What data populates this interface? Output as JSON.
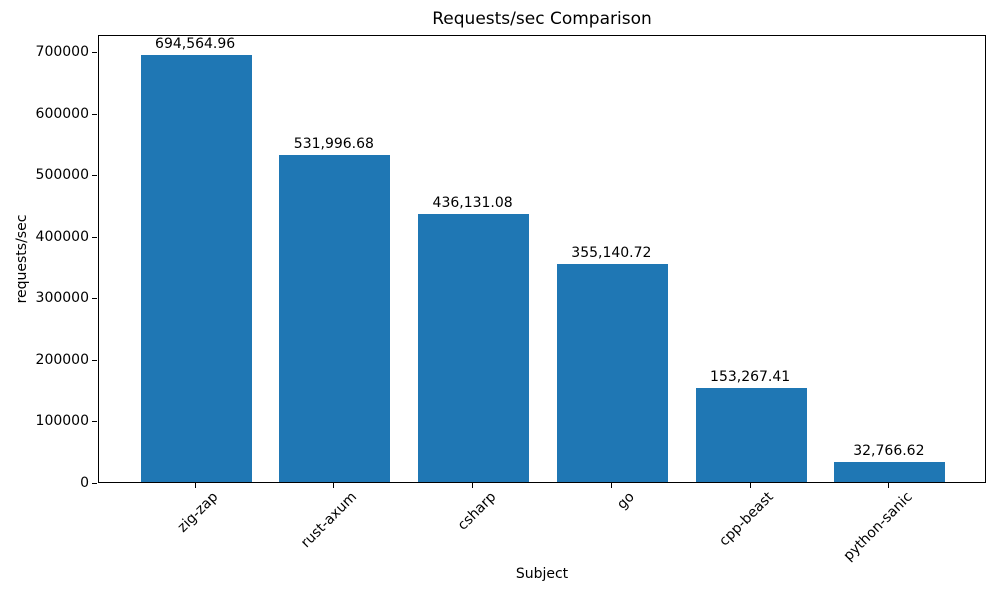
{
  "chart_data": {
    "type": "bar",
    "title": "Requests/sec Comparison",
    "xlabel": "Subject",
    "ylabel": "requests/sec",
    "categories": [
      "zig-zap",
      "rust-axum",
      "csharp",
      "go",
      "cpp-beast",
      "python-sanic"
    ],
    "values": [
      694564.96,
      531996.68,
      436131.08,
      355140.72,
      153267.41,
      32766.62
    ],
    "value_labels": [
      "694,564.96",
      "531,996.68",
      "436,131.08",
      "355,140.72",
      "153,267.41",
      "32,766.62"
    ],
    "yticks": [
      0,
      100000,
      200000,
      300000,
      400000,
      500000,
      600000,
      700000
    ],
    "ylim": [
      0,
      729293
    ],
    "bar_color": "#1f77b4",
    "text_color": "#000000",
    "grid": false,
    "legend": null,
    "x_tick_rotation_deg": 45,
    "background_color": "#ffffff"
  }
}
